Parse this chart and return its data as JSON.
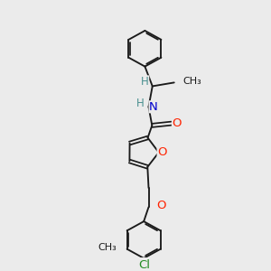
{
  "background_color": "#ebebeb",
  "bond_color": "#1a1a1a",
  "N_color": "#0000cd",
  "O_color": "#ff2200",
  "Cl_color": "#228b22",
  "H_color": "#4a9090",
  "font_size": 8.5,
  "figsize": [
    3.0,
    3.0
  ],
  "dpi": 100,
  "xlim": [
    0,
    10
  ],
  "ylim": [
    0,
    10
  ]
}
